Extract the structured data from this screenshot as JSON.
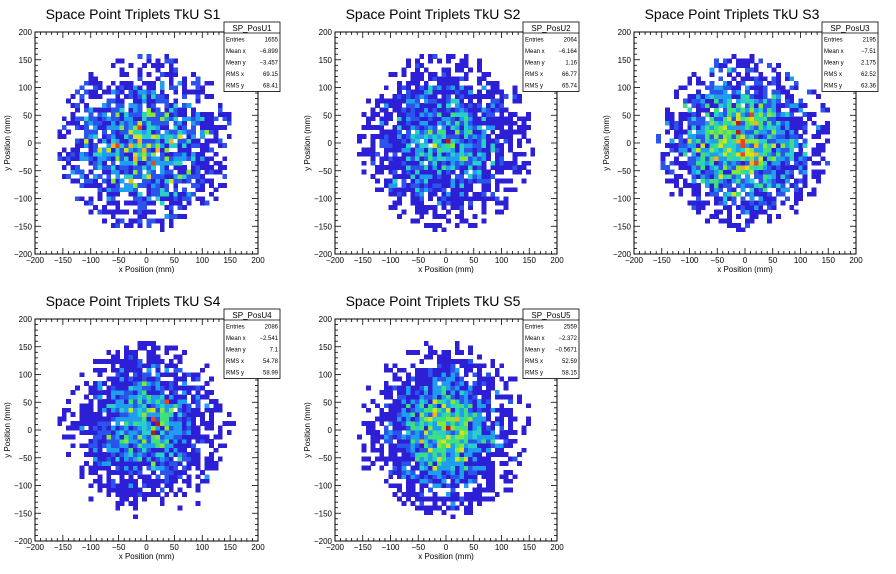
{
  "palette": [
    "#2c1fd6",
    "#2b54ec",
    "#1f9ef0",
    "#28d0c8",
    "#3fe07c",
    "#86e63a",
    "#d2e21e",
    "#f4b21c",
    "#f0421c",
    "#c81414"
  ],
  "chart_data": [
    {
      "type": "heatmap",
      "title": "Space Point Triplets TkU S1",
      "xlabel": "x Position (mm)",
      "ylabel": "y Position (mm)",
      "xlim": [
        -200,
        200
      ],
      "ylim": [
        -200,
        200
      ],
      "xticks": [
        -200,
        -150,
        -100,
        -50,
        0,
        50,
        100,
        150,
        200
      ],
      "yticks": [
        -200,
        -150,
        -100,
        -50,
        0,
        50,
        100,
        150,
        200
      ],
      "bin_width_mm": 8,
      "stats": {
        "name": "SP_PosU1",
        "rows": [
          {
            "label": "Entries",
            "value": "1655"
          },
          {
            "label": "Mean x",
            "value": "−6.899"
          },
          {
            "label": "Mean y",
            "value": "−3.457"
          },
          {
            "label": "RMS x",
            "value": "69.15"
          },
          {
            "label": "RMS y",
            "value": "68.41"
          }
        ]
      },
      "entries": 1655,
      "mean_x": -6.899,
      "mean_y": -3.457,
      "rms_x": 69.15,
      "rms_y": 68.41
    },
    {
      "type": "heatmap",
      "title": "Space Point Triplets TkU S2",
      "xlabel": "x Position (mm)",
      "ylabel": "y Position (mm)",
      "xlim": [
        -200,
        200
      ],
      "ylim": [
        -200,
        200
      ],
      "xticks": [
        -200,
        -150,
        -100,
        -50,
        0,
        50,
        100,
        150,
        200
      ],
      "yticks": [
        -200,
        -150,
        -100,
        -50,
        0,
        50,
        100,
        150,
        200
      ],
      "bin_width_mm": 8,
      "stats": {
        "name": "SP_PosU2",
        "rows": [
          {
            "label": "Entries",
            "value": "2064"
          },
          {
            "label": "Mean x",
            "value": "−6.164"
          },
          {
            "label": "Mean y",
            "value": "1.16"
          },
          {
            "label": "RMS x",
            "value": "66.77"
          },
          {
            "label": "RMS y",
            "value": "65.74"
          }
        ]
      },
      "entries": 2064,
      "mean_x": -6.164,
      "mean_y": 1.16,
      "rms_x": 66.77,
      "rms_y": 65.74
    },
    {
      "type": "heatmap",
      "title": "Space Point Triplets TkU S3",
      "xlabel": "x Position (mm)",
      "ylabel": "y Position (mm)",
      "xlim": [
        -200,
        200
      ],
      "ylim": [
        -200,
        200
      ],
      "xticks": [
        -200,
        -150,
        -100,
        -50,
        0,
        50,
        100,
        150,
        200
      ],
      "yticks": [
        -200,
        -150,
        -100,
        -50,
        0,
        50,
        100,
        150,
        200
      ],
      "bin_width_mm": 8,
      "stats": {
        "name": "SP_PosU3",
        "rows": [
          {
            "label": "Entries",
            "value": "2195"
          },
          {
            "label": "Mean x",
            "value": "−7.51"
          },
          {
            "label": "Mean y",
            "value": "2.175"
          },
          {
            "label": "RMS x",
            "value": "62.52"
          },
          {
            "label": "RMS y",
            "value": "63.36"
          }
        ]
      },
      "entries": 2195,
      "mean_x": -7.51,
      "mean_y": 2.175,
      "rms_x": 62.52,
      "rms_y": 63.36
    },
    {
      "type": "heatmap",
      "title": "Space Point Triplets TkU S4",
      "xlabel": "x Position (mm)",
      "ylabel": "y Position (mm)",
      "xlim": [
        -200,
        200
      ],
      "ylim": [
        -200,
        200
      ],
      "xticks": [
        -200,
        -150,
        -100,
        -50,
        0,
        50,
        100,
        150,
        200
      ],
      "yticks": [
        -200,
        -150,
        -100,
        -50,
        0,
        50,
        100,
        150,
        200
      ],
      "bin_width_mm": 8,
      "stats": {
        "name": "SP_PosU4",
        "rows": [
          {
            "label": "Entries",
            "value": "2086"
          },
          {
            "label": "Mean x",
            "value": "−2.541"
          },
          {
            "label": "Mean y",
            "value": "7.1"
          },
          {
            "label": "RMS x",
            "value": "54.78"
          },
          {
            "label": "RMS y",
            "value": "58.99"
          }
        ]
      },
      "entries": 2086,
      "mean_x": -2.541,
      "mean_y": 7.1,
      "rms_x": 54.78,
      "rms_y": 58.99
    },
    {
      "type": "heatmap",
      "title": "Space Point Triplets TkU S5",
      "xlabel": "x Position (mm)",
      "ylabel": "y Position (mm)",
      "xlim": [
        -200,
        200
      ],
      "ylim": [
        -200,
        200
      ],
      "xticks": [
        -200,
        -150,
        -100,
        -50,
        0,
        50,
        100,
        150,
        200
      ],
      "yticks": [
        -200,
        -150,
        -100,
        -50,
        0,
        50,
        100,
        150,
        200
      ],
      "bin_width_mm": 8,
      "stats": {
        "name": "SP_PosU5",
        "rows": [
          {
            "label": "Entries",
            "value": "2559"
          },
          {
            "label": "Mean x",
            "value": "−2.372"
          },
          {
            "label": "Mean y",
            "value": "−0.5671"
          },
          {
            "label": "RMS x",
            "value": "52.59"
          },
          {
            "label": "RMS y",
            "value": "58.15"
          }
        ]
      },
      "entries": 2559,
      "mean_x": -2.372,
      "mean_y": -0.5671,
      "rms_x": 52.59,
      "rms_y": 58.15
    }
  ]
}
